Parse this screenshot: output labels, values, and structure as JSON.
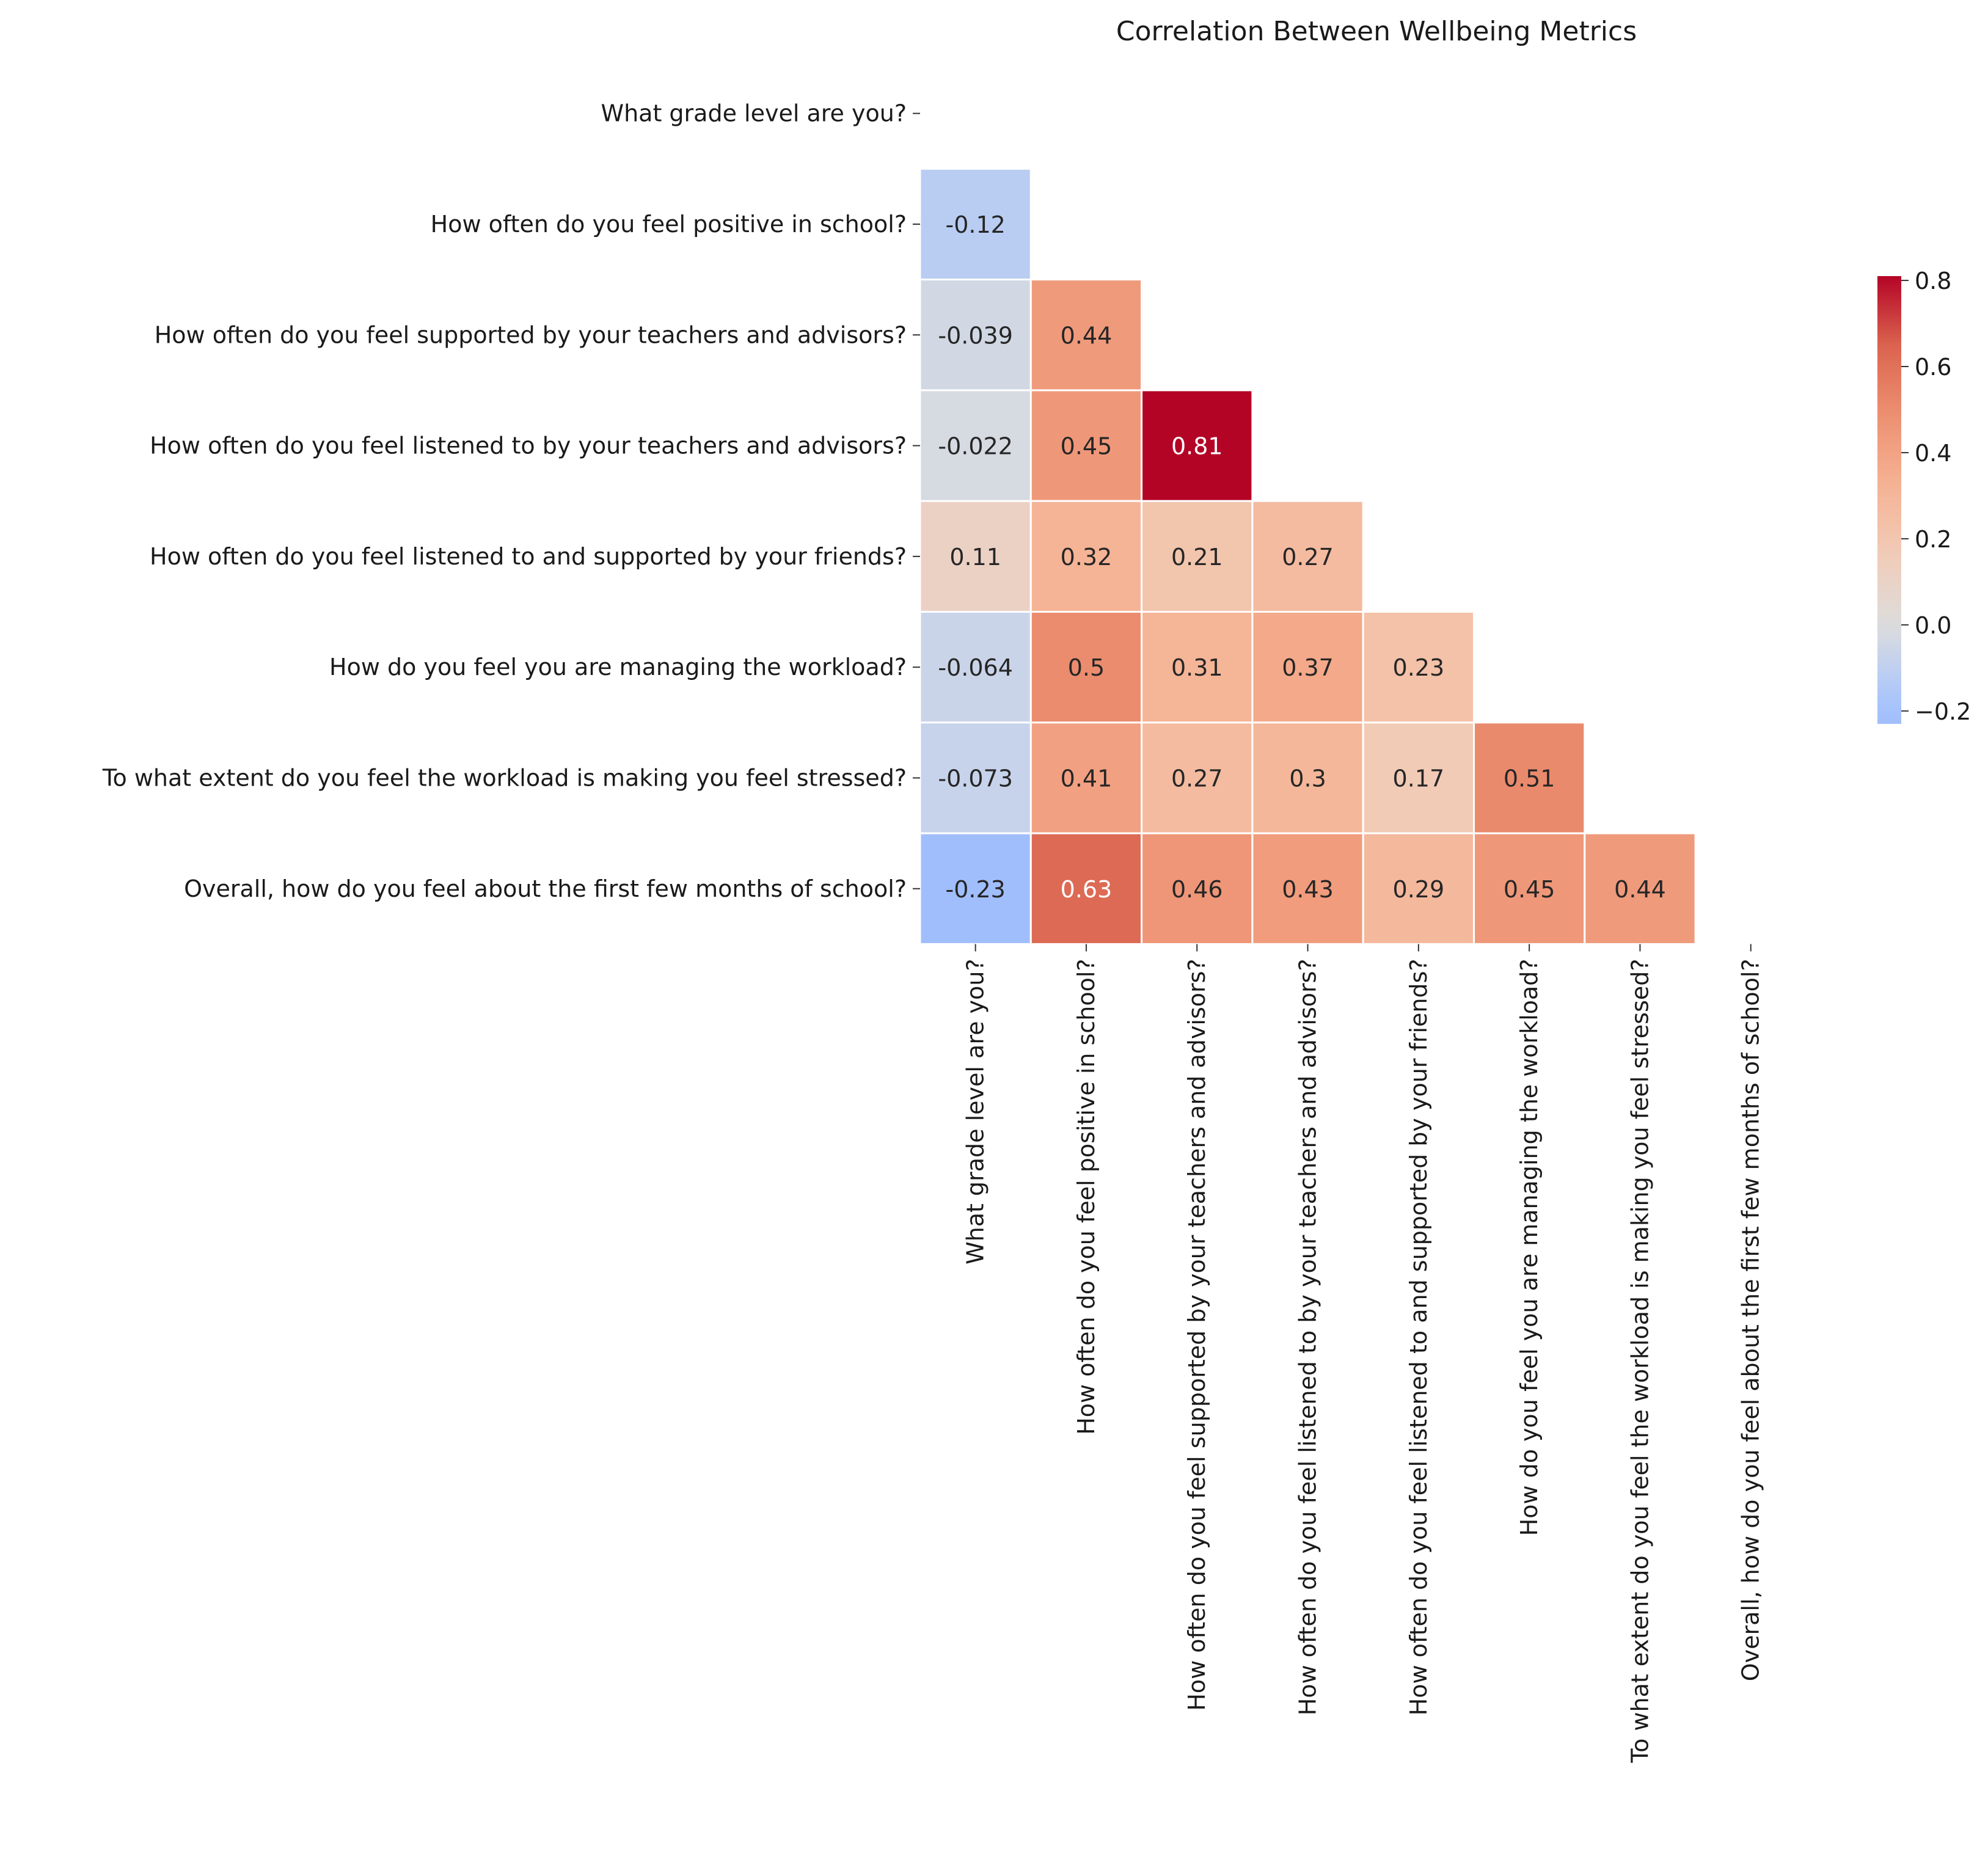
{
  "chart_data": {
    "type": "heatmap",
    "title": "Correlation Between Wellbeing Metrics",
    "xlabel": "",
    "ylabel": "",
    "mask": "upper-triangle-including-diagonal",
    "colormap": "coolwarm",
    "color_range": [
      -0.23,
      0.81
    ],
    "colorbar_ticks": [
      "0.8",
      "0.6",
      "0.4",
      "0.2",
      "0.0",
      "−0.2"
    ],
    "colorbar_tick_values": [
      0.8,
      0.6,
      0.4,
      0.2,
      0.0,
      -0.2
    ],
    "labels": [
      "What grade level are you?",
      "How often do you feel positive in school?",
      "How often do you feel supported by your teachers and advisors?",
      "How often do you feel listened to by your teachers and advisors?",
      "How often do you feel listened to and supported by your friends?",
      "How do you feel you are managing the workload?",
      "To what extent do you feel the workload is making you feel stressed?",
      "Overall, how do you feel about the first few months of school?"
    ],
    "cells": [
      {
        "row": 1,
        "col": 0,
        "value": -0.12,
        "label": "-0.12"
      },
      {
        "row": 2,
        "col": 0,
        "value": -0.039,
        "label": "-0.039"
      },
      {
        "row": 2,
        "col": 1,
        "value": 0.44,
        "label": "0.44"
      },
      {
        "row": 3,
        "col": 0,
        "value": -0.022,
        "label": "-0.022"
      },
      {
        "row": 3,
        "col": 1,
        "value": 0.45,
        "label": "0.45"
      },
      {
        "row": 3,
        "col": 2,
        "value": 0.81,
        "label": "0.81"
      },
      {
        "row": 4,
        "col": 0,
        "value": 0.11,
        "label": "0.11"
      },
      {
        "row": 4,
        "col": 1,
        "value": 0.32,
        "label": "0.32"
      },
      {
        "row": 4,
        "col": 2,
        "value": 0.21,
        "label": "0.21"
      },
      {
        "row": 4,
        "col": 3,
        "value": 0.27,
        "label": "0.27"
      },
      {
        "row": 5,
        "col": 0,
        "value": -0.064,
        "label": "-0.064"
      },
      {
        "row": 5,
        "col": 1,
        "value": 0.5,
        "label": "0.5"
      },
      {
        "row": 5,
        "col": 2,
        "value": 0.31,
        "label": "0.31"
      },
      {
        "row": 5,
        "col": 3,
        "value": 0.37,
        "label": "0.37"
      },
      {
        "row": 5,
        "col": 4,
        "value": 0.23,
        "label": "0.23"
      },
      {
        "row": 6,
        "col": 0,
        "value": -0.073,
        "label": "-0.073"
      },
      {
        "row": 6,
        "col": 1,
        "value": 0.41,
        "label": "0.41"
      },
      {
        "row": 6,
        "col": 2,
        "value": 0.27,
        "label": "0.27"
      },
      {
        "row": 6,
        "col": 3,
        "value": 0.3,
        "label": "0.3"
      },
      {
        "row": 6,
        "col": 4,
        "value": 0.17,
        "label": "0.17"
      },
      {
        "row": 6,
        "col": 5,
        "value": 0.51,
        "label": "0.51"
      },
      {
        "row": 7,
        "col": 0,
        "value": -0.23,
        "label": "-0.23"
      },
      {
        "row": 7,
        "col": 1,
        "value": 0.63,
        "label": "0.63"
      },
      {
        "row": 7,
        "col": 2,
        "value": 0.46,
        "label": "0.46"
      },
      {
        "row": 7,
        "col": 3,
        "value": 0.43,
        "label": "0.43"
      },
      {
        "row": 7,
        "col": 4,
        "value": 0.29,
        "label": "0.29"
      },
      {
        "row": 7,
        "col": 5,
        "value": 0.45,
        "label": "0.45"
      },
      {
        "row": 7,
        "col": 6,
        "value": 0.44,
        "label": "0.44"
      }
    ]
  }
}
